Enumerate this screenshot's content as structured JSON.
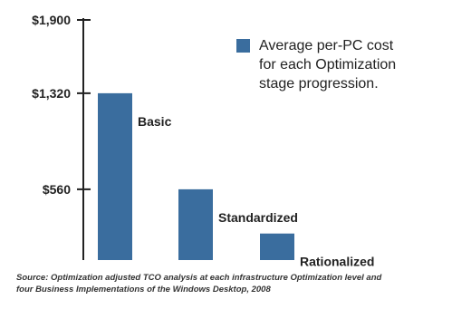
{
  "chart_data": {
    "type": "bar",
    "categories": [
      "Basic",
      "Standardized",
      "Rationalized"
    ],
    "values": [
      1320,
      560,
      210
    ],
    "ylim": [
      0,
      1900
    ],
    "yticks": [
      {
        "value": 1900,
        "label": "$1,900"
      },
      {
        "value": 1320,
        "label": "$1,320"
      },
      {
        "value": 560,
        "label": "$560"
      }
    ],
    "legend": {
      "placement": "top-right",
      "lines": [
        "Average per-PC cost",
        "for each Optimization",
        "stage progression."
      ]
    },
    "grid": false,
    "bar_color": "#3a6d9e"
  },
  "source": "Source: Optimization adjusted TCO analysis at each infrastructure Optimization level and\nfour Business Implementations of the Windows Desktop, 2008"
}
